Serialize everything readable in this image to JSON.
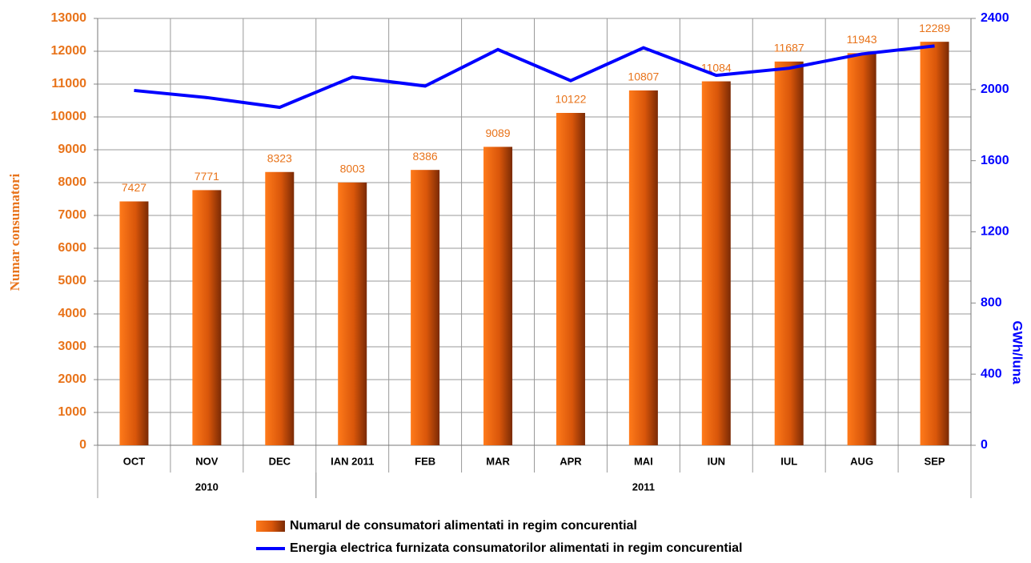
{
  "chart_data": {
    "type": "bar_line",
    "categories": [
      "OCT",
      "NOV",
      "DEC",
      "IAN 2011",
      "FEB",
      "MAR",
      "APR",
      "MAI",
      "IUN",
      "IUL",
      "AUG",
      "SEP"
    ],
    "groups": [
      {
        "label": "2010",
        "count": 3
      },
      {
        "label": "2011",
        "count": 9
      }
    ],
    "ylabel": "Numar consumatori",
    "y2label": "GWh/luna",
    "ylim": [
      0,
      13000
    ],
    "yticks": [
      0,
      1000,
      2000,
      3000,
      4000,
      5000,
      6000,
      7000,
      8000,
      9000,
      10000,
      11000,
      12000,
      13000
    ],
    "y2lim": [
      0,
      2400
    ],
    "y2ticks": [
      0,
      400,
      800,
      1200,
      1600,
      2000,
      2400
    ],
    "grid": true,
    "legend": "bottom",
    "series": [
      {
        "name": "Numarul de consumatori alimentati in regim concurential",
        "type": "bar",
        "color": "#e8731a",
        "values": [
          7427,
          7771,
          8323,
          8003,
          8386,
          9089,
          10122,
          10807,
          11084,
          11687,
          11943,
          12289
        ]
      },
      {
        "name": "Energia electrica furnizata consumatorilor alimentati in regim concurential",
        "type": "line",
        "axis": "y2",
        "color": "#0000ff",
        "values": [
          1995,
          1955,
          1900,
          2070,
          2020,
          2225,
          2050,
          2235,
          2080,
          2120,
          2200,
          2245
        ]
      }
    ]
  }
}
